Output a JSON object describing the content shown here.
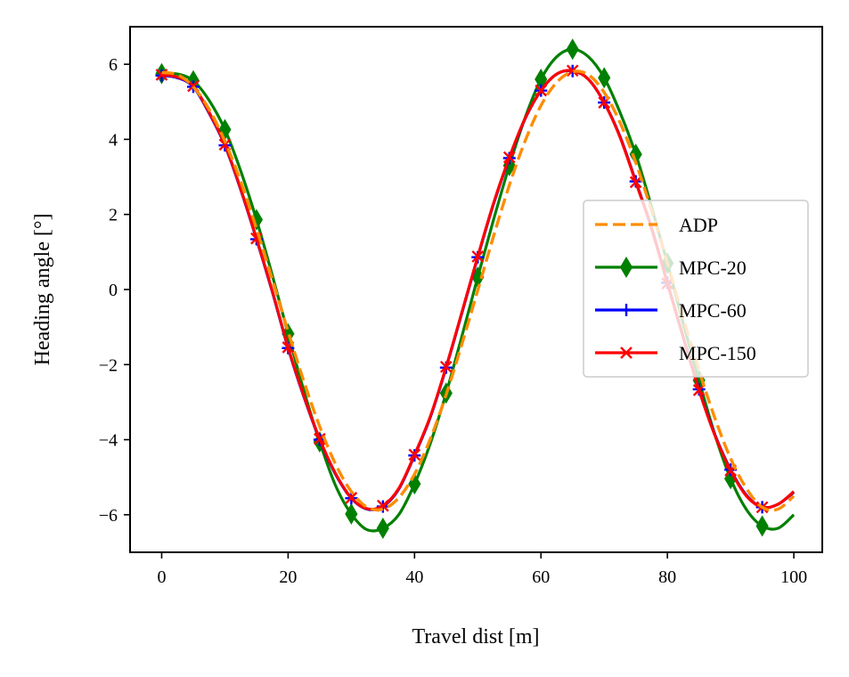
{
  "chart_data": {
    "type": "line",
    "xlabel": "Travel dist [m]",
    "ylabel": "Heading angle [°]",
    "xlim": [
      -5,
      104.5
    ],
    "ylim": [
      -7.0,
      7.0
    ],
    "xticks": [
      0,
      20,
      40,
      60,
      80,
      100
    ],
    "yticks": [
      -6,
      -4,
      -2,
      0,
      2,
      4,
      6
    ],
    "xtick_labels": [
      "0",
      "20",
      "40",
      "60",
      "80",
      "100"
    ],
    "ytick_labels": [
      "−6",
      "−4",
      "−2",
      "0",
      "2",
      "4",
      "6"
    ],
    "grid": false,
    "legend_position": "center-right",
    "series": [
      {
        "name": "ADP",
        "color": "#ff8c00",
        "style": "dashed",
        "marker": "none",
        "x": [
          0,
          2.5,
          5,
          7.5,
          10,
          12.5,
          15,
          17.5,
          20,
          22.5,
          25,
          27.5,
          30,
          32.5,
          35,
          37.5,
          40,
          42.5,
          45,
          47.5,
          50,
          52.5,
          55,
          57.5,
          60,
          62.5,
          65,
          67.5,
          70,
          72.5,
          75,
          77.5,
          80,
          82.5,
          85,
          87.5,
          90,
          92.5,
          95,
          97.5,
          100
        ],
        "y": [
          5.78,
          5.72,
          5.4,
          4.8,
          3.95,
          2.88,
          1.62,
          0.27,
          -1.12,
          -2.45,
          -3.65,
          -4.65,
          -5.38,
          -5.8,
          -5.85,
          -5.55,
          -4.92,
          -3.98,
          -2.8,
          -1.45,
          -0.02,
          1.42,
          2.78,
          3.96,
          4.9,
          5.52,
          5.8,
          5.72,
          5.25,
          4.45,
          3.38,
          2.1,
          0.7,
          -0.76,
          -2.15,
          -3.42,
          -4.5,
          -5.3,
          -5.8,
          -5.85,
          -5.5
        ]
      },
      {
        "name": "MPC-20",
        "color": "#008000",
        "style": "solid",
        "marker": "diamond",
        "x": [
          0,
          2.5,
          5,
          7.5,
          10,
          12.5,
          15,
          17.5,
          20,
          22.5,
          25,
          27.5,
          30,
          32.5,
          35,
          37.5,
          40,
          42.5,
          45,
          47.5,
          50,
          52.5,
          55,
          57.5,
          60,
          62.5,
          65,
          67.5,
          70,
          72.5,
          75,
          77.5,
          80,
          82.5,
          85,
          87.5,
          90,
          92.5,
          95,
          97.5,
          100
        ],
        "y": [
          5.75,
          5.74,
          5.56,
          5.04,
          4.26,
          3.16,
          1.86,
          0.38,
          -1.18,
          -2.7,
          -4.06,
          -5.22,
          -5.98,
          -6.4,
          -6.36,
          -6.0,
          -5.18,
          -4.1,
          -2.76,
          -1.24,
          0.33,
          1.86,
          3.3,
          4.58,
          5.6,
          6.2,
          6.4,
          6.2,
          5.64,
          4.72,
          3.6,
          2.2,
          0.7,
          -0.9,
          -2.42,
          -3.86,
          -5.04,
          -5.86,
          -6.3,
          -6.36,
          -6.0
        ],
        "marker_x": [
          0,
          5,
          10,
          15,
          20,
          25,
          30,
          35,
          40,
          45,
          50,
          55,
          60,
          65,
          70,
          75,
          80,
          85,
          90,
          95
        ],
        "marker_y": [
          5.75,
          5.56,
          4.26,
          1.86,
          -1.18,
          -4.06,
          -5.98,
          -6.36,
          -5.18,
          -2.76,
          0.33,
          3.3,
          5.6,
          6.4,
          5.64,
          3.6,
          0.7,
          -2.42,
          -5.04,
          -6.3
        ]
      },
      {
        "name": "MPC-60",
        "color": "#0000ff",
        "style": "solid",
        "marker": "plus",
        "x": [
          0,
          2.5,
          5,
          7.5,
          10,
          12.5,
          15,
          17.5,
          20,
          22.5,
          25,
          27.5,
          30,
          32.5,
          35,
          37.5,
          40,
          42.5,
          45,
          47.5,
          50,
          52.5,
          55,
          57.5,
          60,
          62.5,
          65,
          67.5,
          70,
          72.5,
          75,
          77.5,
          80,
          82.5,
          85,
          87.5,
          90,
          92.5,
          95,
          97.5,
          100
        ],
        "y": [
          5.7,
          5.64,
          5.4,
          4.7,
          3.84,
          2.66,
          1.34,
          -0.06,
          -1.56,
          -2.86,
          -4.0,
          -4.92,
          -5.56,
          -5.85,
          -5.78,
          -5.32,
          -4.42,
          -3.4,
          -2.08,
          -0.62,
          0.86,
          2.28,
          3.5,
          4.55,
          5.3,
          5.74,
          5.82,
          5.6,
          4.98,
          4.08,
          2.88,
          1.64,
          0.18,
          -1.26,
          -2.66,
          -3.86,
          -4.8,
          -5.48,
          -5.8,
          -5.72,
          -5.4
        ],
        "marker_x": [
          0,
          5,
          10,
          15,
          20,
          25,
          30,
          35,
          40,
          45,
          50,
          55,
          60,
          65,
          70,
          75,
          80,
          85,
          90,
          95
        ],
        "marker_y": [
          5.7,
          5.4,
          3.84,
          1.34,
          -1.56,
          -4.0,
          -5.56,
          -5.78,
          -4.42,
          -2.08,
          0.86,
          3.5,
          5.3,
          5.82,
          4.98,
          2.88,
          0.18,
          -2.66,
          -4.8,
          -5.8
        ]
      },
      {
        "name": "MPC-150",
        "color": "#ff0000",
        "style": "solid",
        "marker": "x",
        "x": [
          0,
          2.5,
          5,
          7.5,
          10,
          12.5,
          15,
          17.5,
          20,
          22.5,
          25,
          27.5,
          30,
          32.5,
          35,
          37.5,
          40,
          42.5,
          45,
          47.5,
          50,
          52.5,
          55,
          57.5,
          60,
          62.5,
          65,
          67.5,
          70,
          72.5,
          75,
          77.5,
          80,
          82.5,
          85,
          87.5,
          90,
          92.5,
          95,
          97.5,
          100
        ],
        "y": [
          5.72,
          5.66,
          5.42,
          4.72,
          3.86,
          2.68,
          1.36,
          -0.04,
          -1.54,
          -2.84,
          -3.98,
          -4.9,
          -5.55,
          -5.84,
          -5.76,
          -5.3,
          -4.4,
          -3.38,
          -2.06,
          -0.6,
          0.88,
          2.3,
          3.52,
          4.56,
          5.3,
          5.74,
          5.83,
          5.6,
          4.98,
          4.06,
          2.86,
          1.62,
          0.16,
          -1.28,
          -2.68,
          -3.88,
          -4.82,
          -5.5,
          -5.8,
          -5.72,
          -5.38
        ],
        "marker_x": [
          0,
          5,
          10,
          15,
          20,
          25,
          30,
          35,
          40,
          45,
          50,
          55,
          60,
          65,
          70,
          75,
          80,
          85,
          90,
          95
        ],
        "marker_y": [
          5.72,
          5.42,
          3.86,
          1.36,
          -1.54,
          -3.98,
          -5.55,
          -5.76,
          -4.4,
          -2.06,
          0.88,
          3.52,
          5.3,
          5.83,
          4.98,
          2.86,
          0.16,
          -2.68,
          -4.82,
          -5.8
        ]
      }
    ]
  }
}
